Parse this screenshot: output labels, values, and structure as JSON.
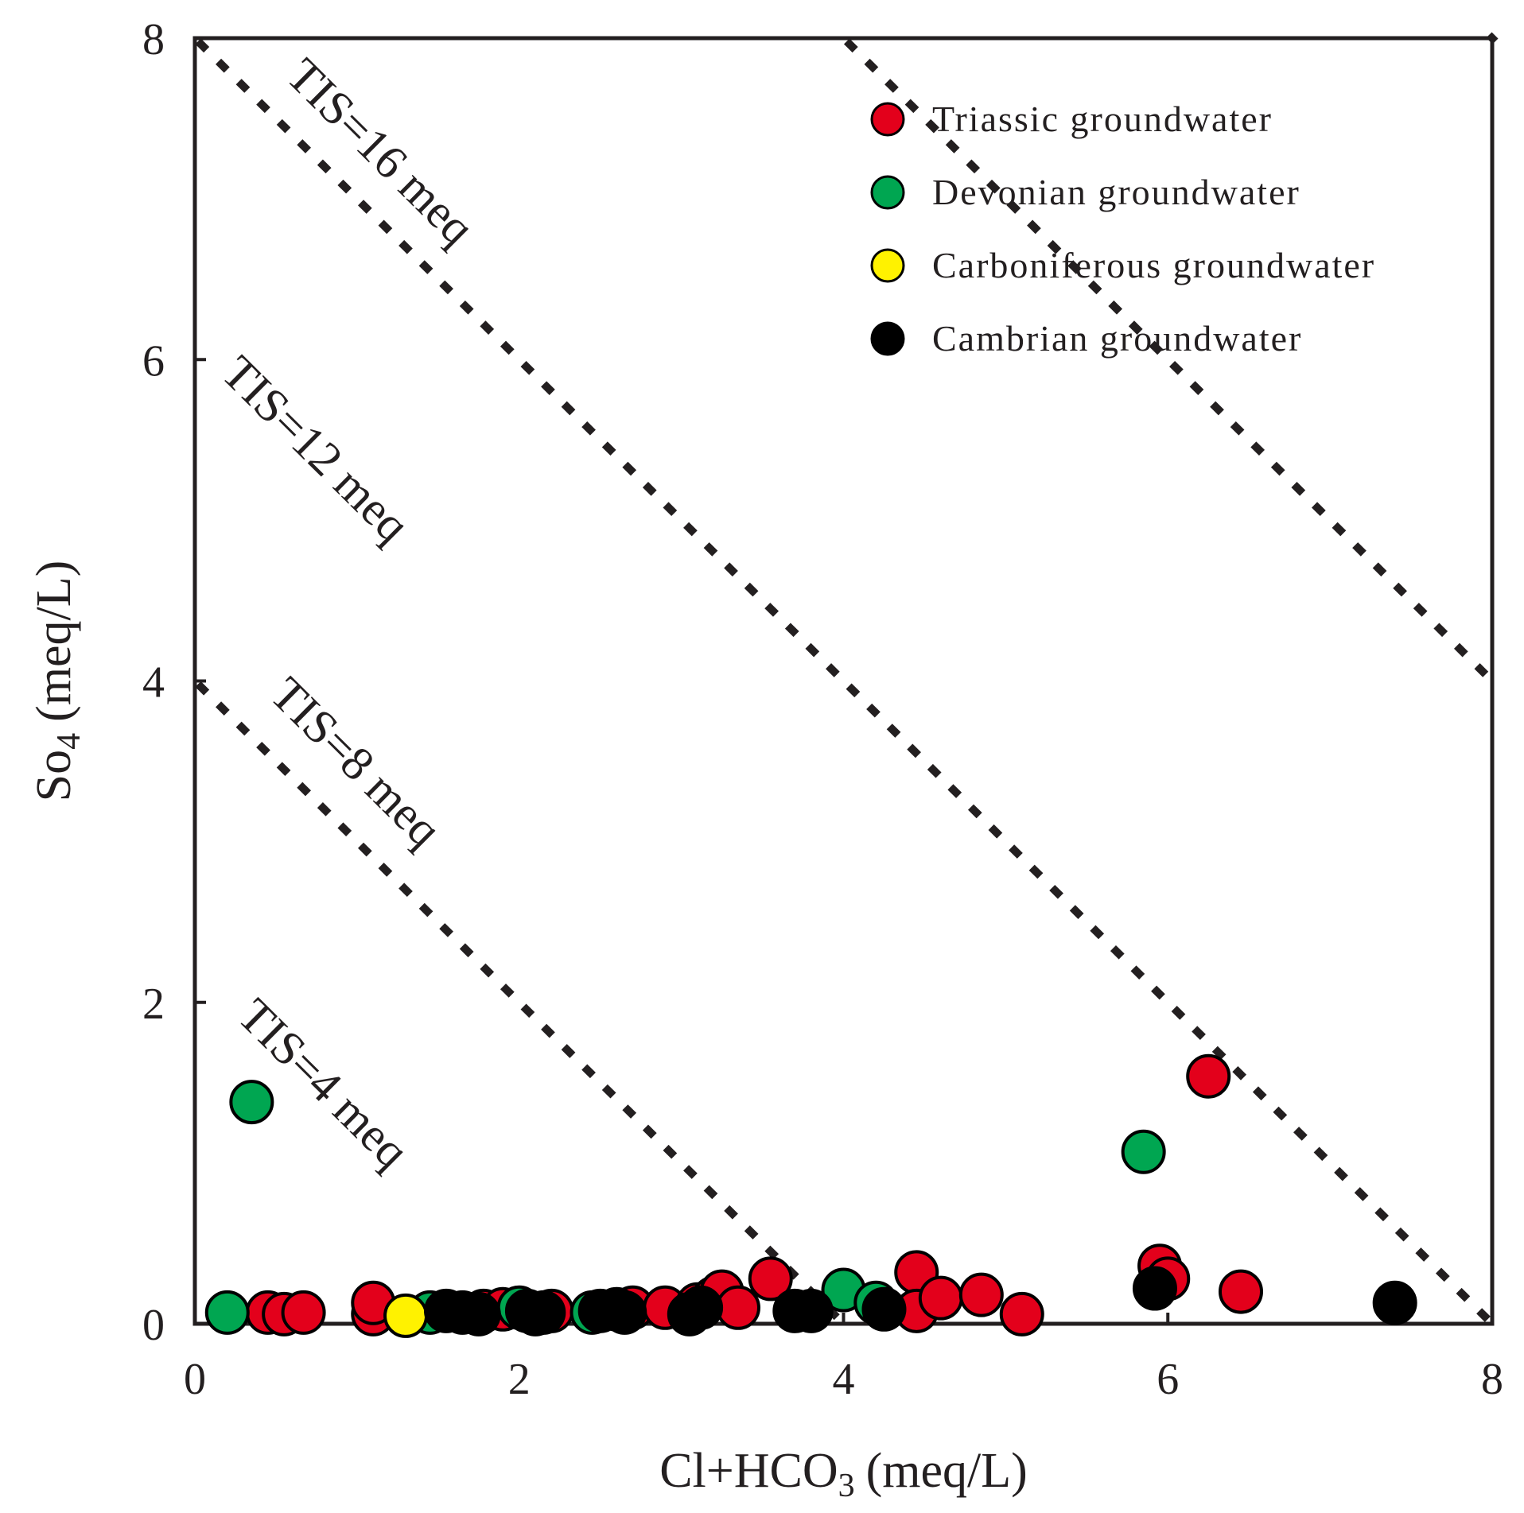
{
  "chart_data": {
    "type": "scatter",
    "xlabel": "Cl+HCO3 (meq/L)",
    "xlabel_parts": {
      "main": "Cl+HCO",
      "sub": "3",
      "unit": "(meq/L)"
    },
    "ylabel": "So4 (meq/L)",
    "ylabel_parts": {
      "main": "So",
      "sub": "4",
      "unit": "(meq/L)"
    },
    "xlim": [
      0,
      8
    ],
    "ylim": [
      0,
      8
    ],
    "xticks": [
      0,
      2,
      4,
      6,
      8
    ],
    "yticks": [
      0,
      2,
      4,
      6,
      8
    ],
    "xtick_labels": [
      "0",
      "2",
      "4",
      "6",
      "8"
    ],
    "ytick_labels": [
      "0",
      "2",
      "4",
      "6",
      "8"
    ],
    "grid": false,
    "legend_position": "top-right",
    "reference_lines": [
      {
        "label": "TIS=4 meq",
        "total": 4,
        "style": "dotted"
      },
      {
        "label": "TIS=8 meq",
        "total": 8,
        "style": "dotted"
      },
      {
        "label": "TIS=12 meq",
        "total": 12,
        "style": "dotted"
      },
      {
        "label": "TIS=16 meq",
        "total": 16,
        "style": "dotted"
      }
    ],
    "series": [
      {
        "name": "Triassic groundwater",
        "color": "#e3001b",
        "points": [
          [
            0.45,
            0.07
          ],
          [
            0.55,
            0.06
          ],
          [
            0.67,
            0.07
          ],
          [
            1.1,
            0.06
          ],
          [
            1.1,
            0.13
          ],
          [
            1.78,
            0.08
          ],
          [
            1.9,
            0.09
          ],
          [
            2.2,
            0.08
          ],
          [
            2.7,
            0.1
          ],
          [
            2.9,
            0.1
          ],
          [
            3.1,
            0.12
          ],
          [
            3.2,
            0.16
          ],
          [
            3.25,
            0.2
          ],
          [
            3.35,
            0.1
          ],
          [
            3.55,
            0.28
          ],
          [
            4.45,
            0.32
          ],
          [
            4.45,
            0.08
          ],
          [
            4.6,
            0.16
          ],
          [
            4.85,
            0.18
          ],
          [
            5.1,
            0.06
          ],
          [
            5.95,
            0.36
          ],
          [
            6.0,
            0.28
          ],
          [
            6.25,
            1.54
          ],
          [
            6.45,
            0.2
          ]
        ]
      },
      {
        "name": "Devonian groundwater",
        "color": "#00a651",
        "points": [
          [
            0.2,
            0.07
          ],
          [
            0.35,
            1.38
          ],
          [
            1.45,
            0.07
          ],
          [
            2.0,
            0.1
          ],
          [
            2.45,
            0.07
          ],
          [
            4.0,
            0.21
          ],
          [
            4.2,
            0.13
          ],
          [
            5.85,
            1.07
          ]
        ]
      },
      {
        "name": "Carboniferous groundwater",
        "color": "#fff200",
        "points": [
          [
            1.3,
            0.05
          ]
        ]
      },
      {
        "name": "Cambrian groundwater",
        "color": "#000000",
        "points": [
          [
            1.55,
            0.08
          ],
          [
            1.65,
            0.07
          ],
          [
            1.75,
            0.06
          ],
          [
            2.05,
            0.08
          ],
          [
            2.1,
            0.06
          ],
          [
            2.15,
            0.07
          ],
          [
            2.5,
            0.08
          ],
          [
            2.6,
            0.09
          ],
          [
            2.65,
            0.07
          ],
          [
            3.05,
            0.06
          ],
          [
            3.12,
            0.1
          ],
          [
            3.7,
            0.08
          ],
          [
            3.8,
            0.08
          ],
          [
            4.25,
            0.09
          ],
          [
            5.92,
            0.22
          ],
          [
            7.4,
            0.13
          ]
        ]
      }
    ]
  }
}
